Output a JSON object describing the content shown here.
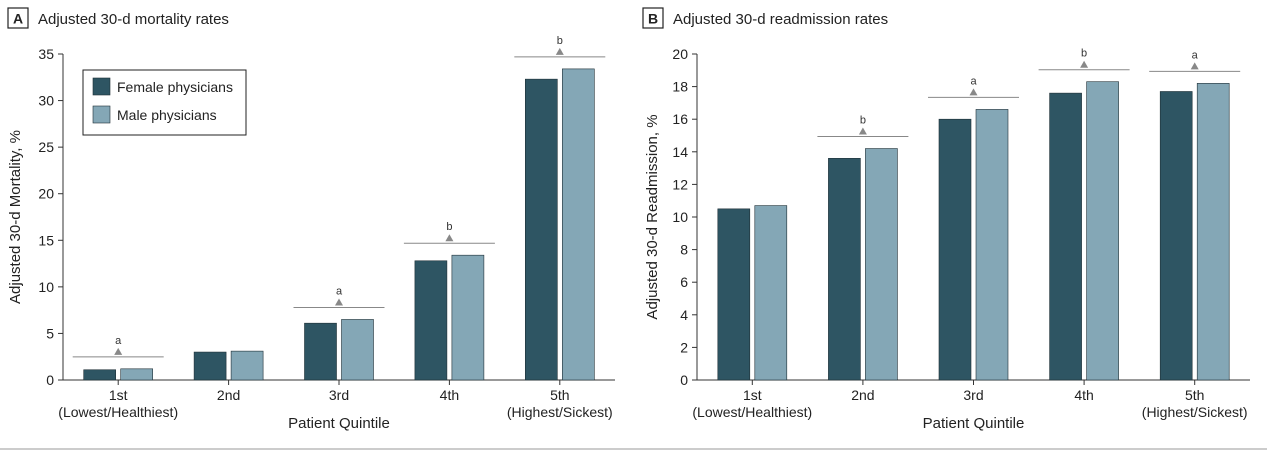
{
  "chart_data": [
    {
      "type": "bar",
      "panel_letter": "A",
      "title": "Adjusted 30-d mortality rates",
      "xlabel": "Patient Quintile",
      "ylabel": "Adjusted 30-d Mortality, %",
      "ylim": [
        0,
        35
      ],
      "yticks": [
        0,
        5,
        10,
        15,
        20,
        25,
        30,
        35
      ],
      "grid": false,
      "legend_placement": "top-left",
      "categories": [
        "1st|(Lowest/Healthiest)",
        "2nd",
        "3rd",
        "4th",
        "5th|(Highest/Sickest)"
      ],
      "series": [
        {
          "name": "Female physicians",
          "color": "#2e5563",
          "values": [
            1.1,
            3.0,
            6.1,
            12.8,
            32.3
          ]
        },
        {
          "name": "Male physicians",
          "color": "#84a7b6",
          "values": [
            1.2,
            3.1,
            6.5,
            13.4,
            33.4
          ]
        }
      ],
      "significance": [
        "a",
        "",
        "a",
        "b",
        "b"
      ]
    },
    {
      "type": "bar",
      "panel_letter": "B",
      "title": "Adjusted 30-d readmission rates",
      "xlabel": "Patient Quintile",
      "ylabel": "Adjusted 30-d Readmission, %",
      "ylim": [
        0,
        20
      ],
      "yticks": [
        0,
        2,
        4,
        6,
        8,
        10,
        12,
        14,
        16,
        18,
        20
      ],
      "grid": false,
      "legend_placement": "none",
      "categories": [
        "1st|(Lowest/Healthiest)",
        "2nd",
        "3rd",
        "4th",
        "5th|(Highest/Sickest)"
      ],
      "series": [
        {
          "name": "Female physicians",
          "color": "#2e5563",
          "values": [
            10.5,
            13.6,
            16.0,
            17.6,
            17.7
          ]
        },
        {
          "name": "Male physicians",
          "color": "#84a7b6",
          "values": [
            10.7,
            14.2,
            16.6,
            18.3,
            18.2
          ]
        }
      ],
      "significance": [
        "",
        "b",
        "a",
        "b",
        "a"
      ]
    }
  ]
}
